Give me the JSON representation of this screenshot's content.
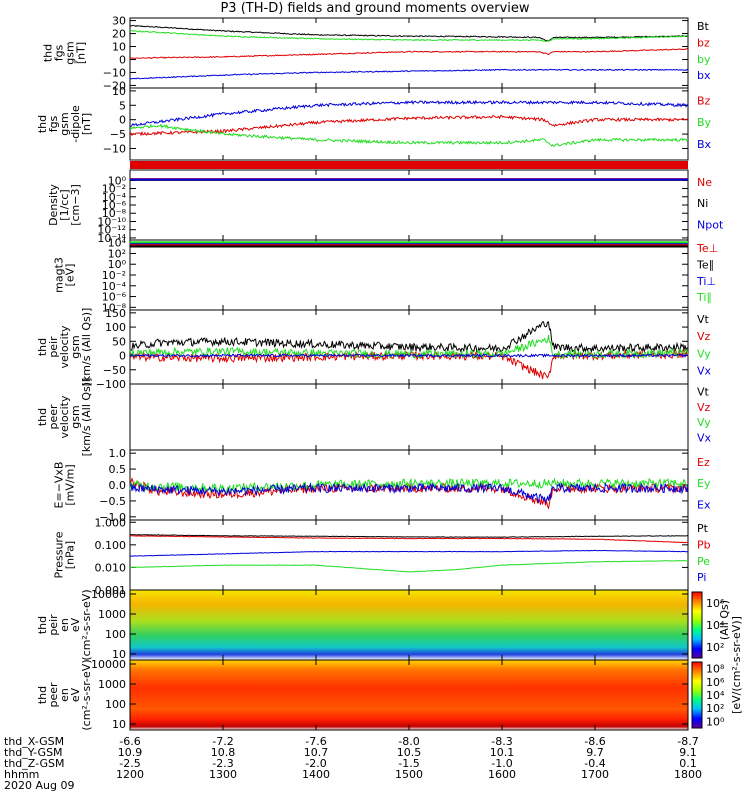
{
  "title": "P3 (TH-D) fields and ground moments overview",
  "colors": {
    "black": "#000000",
    "red": "#e00000",
    "green": "#22dd22",
    "blue": "#0000dd"
  },
  "chart_data": {
    "type": "line",
    "x_time_hhmm": [
      "1200",
      "1300",
      "1400",
      "1500",
      "1600",
      "1700",
      "1800"
    ],
    "x_date": "2020 Aug 09",
    "ephemeris": {
      "rows": [
        {
          "label": "thd_X-GSM",
          "values": [
            "-6.6",
            "-7.2",
            "-7.6",
            "-8.0",
            "-8.3",
            "-8.6",
            "-8.7"
          ]
        },
        {
          "label": "thd_Y-GSM",
          "values": [
            "10.9",
            "10.8",
            "10.7",
            "10.5",
            "10.1",
            "9.7",
            "9.1"
          ]
        },
        {
          "label": "thd_Z-GSM",
          "values": [
            "-2.5",
            "-2.3",
            "-2.0",
            "-1.5",
            "-1.0",
            "-0.4",
            "0.1"
          ]
        },
        {
          "label": "hhmm",
          "values": [
            "1200",
            "1300",
            "1400",
            "1500",
            "1600",
            "1700",
            "1800"
          ]
        }
      ],
      "date": "2020 Aug 09"
    },
    "panels": [
      {
        "id": "fgs_mag",
        "ylabel": [
          "thd",
          "fgs",
          "gsm",
          "[nT]"
        ],
        "yrange": [
          -22,
          32
        ],
        "yticks": [
          "30",
          "20",
          "10",
          "0",
          "−10",
          "−20"
        ],
        "ytick_vals": [
          30,
          20,
          10,
          0,
          -10,
          -20
        ],
        "legend": [
          {
            "name": "Bt",
            "color": "#000000"
          },
          {
            "name": "bz",
            "color": "#e00000"
          },
          {
            "name": "by",
            "color": "#22dd22"
          },
          {
            "name": "bx",
            "color": "#0000dd"
          }
        ],
        "series": [
          {
            "name": "Bt",
            "color": "#000000",
            "x": [
              1200,
              1230,
              1300,
              1400,
              1500,
              1600,
              1640,
              1650,
              1655,
              1700,
              1800
            ],
            "y": [
              26,
              25,
              22,
              19,
              18,
              17.5,
              17,
              14,
              17,
              17,
              18
            ]
          },
          {
            "name": "bz",
            "color": "#e00000",
            "x": [
              1200,
              1300,
              1400,
              1500,
              1600,
              1640,
              1650,
              1655,
              1700,
              1800
            ],
            "y": [
              1,
              2,
              4,
              6,
              6,
              6,
              4,
              6,
              6,
              8
            ]
          },
          {
            "name": "by",
            "color": "#22dd22",
            "x": [
              1200,
              1230,
              1300,
              1400,
              1500,
              1600,
              1640,
              1650,
              1655,
              1700,
              1800
            ],
            "y": [
              22,
              21,
              18,
              16,
              15,
              15,
              15,
              14,
              16,
              16,
              18
            ]
          },
          {
            "name": "bx",
            "color": "#0000dd",
            "x": [
              1200,
              1300,
              1400,
              1500,
              1600,
              1700,
              1800
            ],
            "y": [
              -15,
              -12,
              -10,
              -9,
              -8,
              -8,
              -8
            ]
          }
        ]
      },
      {
        "id": "fgs_dmag",
        "ylabel": [
          "thd",
          "fgs",
          "gsm",
          "-dipole",
          "[nT]"
        ],
        "yrange": [
          -14,
          11
        ],
        "yticks": [
          "10",
          "5",
          "0",
          "−5",
          "−10"
        ],
        "ytick_vals": [
          10,
          5,
          0,
          -5,
          -10
        ],
        "legend": [
          {
            "name": "Bz",
            "color": "#e00000"
          },
          {
            "name": "By",
            "color": "#22dd22"
          },
          {
            "name": "Bx",
            "color": "#0000dd"
          }
        ],
        "series": [
          {
            "name": "Bz",
            "color": "#e00000",
            "x": [
              1200,
              1300,
              1400,
              1500,
              1600,
              1645,
              1655,
              1700,
              1800
            ],
            "y": [
              -5,
              -4,
              -1,
              0.5,
              1,
              0,
              -2,
              0,
              0
            ]
          },
          {
            "name": "By",
            "color": "#22dd22",
            "x": [
              1200,
              1230,
              1300,
              1400,
              1500,
              1600,
              1645,
              1655,
              1700,
              1800
            ],
            "y": [
              -3,
              -2,
              -5,
              -7,
              -8,
              -8,
              -7,
              -9,
              -7,
              -7
            ]
          },
          {
            "name": "Bx",
            "color": "#0000dd",
            "x": [
              1200,
              1300,
              1400,
              1500,
              1600,
              1700,
              1800
            ],
            "y": [
              -2,
              2,
              5,
              6,
              6,
              6,
              5
            ]
          }
        ]
      },
      {
        "id": "density",
        "ylabel": [
          "Density",
          "[1/cc]",
          "[cm−3]"
        ],
        "log": true,
        "yrange": [
          -14.5,
          2.5
        ],
        "yticks": [
          "10⁰",
          "10⁻²",
          "10⁻⁴",
          "10⁻⁶",
          "10⁻⁸",
          "10⁻¹⁰",
          "10⁻¹²",
          "10⁻¹⁴"
        ],
        "ytick_vals": [
          0,
          -2,
          -4,
          -6,
          -8,
          -10,
          -12,
          -14
        ],
        "legend": [
          {
            "name": "Ne",
            "color": "#e00000"
          },
          {
            "name": "Ni",
            "color": "#000000"
          },
          {
            "name": "Npot",
            "color": "#0000dd"
          }
        ],
        "series": [
          {
            "name": "Ne",
            "color": "#e00000",
            "x": [
              1200,
              1800
            ],
            "y": [
              0.3,
              0.3
            ]
          },
          {
            "name": "Ni",
            "color": "#000000",
            "x": [
              1200,
              1800
            ],
            "y": [
              0.1,
              0.1
            ]
          },
          {
            "name": "Npot",
            "color": "#0000dd",
            "x": [
              1200,
              1800
            ],
            "y": [
              0.2,
              0.2
            ]
          }
        ]
      },
      {
        "id": "temp",
        "ylabel": [
          "magt3",
          "[eV]"
        ],
        "log": true,
        "yrange": [
          -8.5,
          4.5
        ],
        "yticks": [
          "10⁴",
          "10²",
          "10⁰",
          "10⁻²",
          "10⁻⁴",
          "10⁻⁶",
          "10⁻⁸"
        ],
        "ytick_vals": [
          4,
          2,
          0,
          -2,
          -4,
          -6,
          -8
        ],
        "legend": [
          {
            "name": "Te⊥",
            "color": "#e00000"
          },
          {
            "name": "Te∥",
            "color": "#000000"
          },
          {
            "name": "Ti⊥",
            "color": "#0000dd"
          },
          {
            "name": "Ti∥",
            "color": "#22dd22"
          }
        ],
        "series": [
          {
            "name": "Te⊥",
            "color": "#e00000",
            "x": [
              1200,
              1800
            ],
            "y": [
              3.6,
              3.6
            ]
          },
          {
            "name": "Te∥",
            "color": "#000000",
            "x": [
              1200,
              1800
            ],
            "y": [
              3.3,
              3.3
            ]
          },
          {
            "name": "Ti⊥",
            "color": "#0000dd",
            "x": [
              1200,
              1800
            ],
            "y": [
              3.9,
              3.9
            ]
          },
          {
            "name": "Ti∥",
            "color": "#22dd22",
            "x": [
              1200,
              1800
            ],
            "y": [
              4.1,
              4.1
            ]
          }
        ]
      },
      {
        "id": "peir_vel",
        "ylabel": [
          "thd",
          "peir",
          "velocity",
          "gsm",
          "[km/s (All Qs)]"
        ],
        "yrange": [
          -100,
          160
        ],
        "yticks": [
          "150",
          "100",
          "50",
          "0",
          "−50",
          "−100"
        ],
        "ytick_vals": [
          150,
          100,
          50,
          0,
          -50,
          -100
        ],
        "legend": [
          {
            "name": "Vt",
            "color": "#000000"
          },
          {
            "name": "Vz",
            "color": "#e00000"
          },
          {
            "name": "Vy",
            "color": "#22dd22"
          },
          {
            "name": "Vx",
            "color": "#0000dd"
          }
        ],
        "series": [
          {
            "name": "Vt",
            "color": "#000000",
            "x": [
              1200,
              1230,
              1300,
              1400,
              1500,
              1600,
              1650,
              1655,
              1700,
              1800
            ],
            "y": [
              30,
              45,
              50,
              40,
              30,
              25,
              120,
              30,
              25,
              30
            ]
          },
          {
            "name": "Vz",
            "color": "#e00000",
            "x": [
              1200,
              1300,
              1400,
              1500,
              1600,
              1650,
              1655,
              1700,
              1800
            ],
            "y": [
              -5,
              -10,
              -5,
              0,
              -3,
              -80,
              0,
              0,
              5
            ]
          },
          {
            "name": "Vy",
            "color": "#22dd22",
            "x": [
              1200,
              1300,
              1400,
              1500,
              1600,
              1650,
              1655,
              1700,
              1800
            ],
            "y": [
              10,
              15,
              8,
              5,
              5,
              60,
              5,
              5,
              10
            ]
          },
          {
            "name": "Vx",
            "color": "#0000dd",
            "x": [
              1200,
              1800
            ],
            "y": [
              0,
              0
            ]
          }
        ]
      },
      {
        "id": "peer_vel",
        "ylabel": [
          "thd",
          "peer",
          "velocity",
          "gsm",
          "[km/s (All Qs)]"
        ],
        "yrange": [
          -100,
          160
        ],
        "yticks": [],
        "ytick_vals": [],
        "legend": [
          {
            "name": "Vt",
            "color": "#000000"
          },
          {
            "name": "Vz",
            "color": "#e00000"
          },
          {
            "name": "Vy",
            "color": "#22dd22"
          },
          {
            "name": "Vx",
            "color": "#0000dd"
          }
        ],
        "series": []
      },
      {
        "id": "efield",
        "ylabel": [
          "E=−VxB",
          "[mV/m]"
        ],
        "yrange": [
          -1.1,
          1.1
        ],
        "yticks": [
          "1.0",
          "0.5",
          "0.0",
          "−0.5",
          "−1.0"
        ],
        "ytick_vals": [
          1,
          0.5,
          0,
          -0.5,
          -1
        ],
        "legend": [
          {
            "name": "Ez",
            "color": "#e00000"
          },
          {
            "name": "Ey",
            "color": "#22dd22"
          },
          {
            "name": "Ex",
            "color": "#0000dd"
          }
        ],
        "series": [
          {
            "name": "Ez",
            "color": "#e00000",
            "x": [
              1200,
              1230,
              1300,
              1400,
              1500,
              1600,
              1650,
              1655,
              1700,
              1800
            ],
            "y": [
              0.1,
              -0.2,
              -0.3,
              -0.1,
              -0.1,
              -0.1,
              -0.6,
              -0.1,
              -0.1,
              -0.1
            ]
          },
          {
            "name": "Ey",
            "color": "#22dd22",
            "x": [
              1200,
              1300,
              1400,
              1500,
              1600,
              1700,
              1800
            ],
            "y": [
              0,
              -0.1,
              0,
              0.05,
              0.05,
              0.05,
              0.05
            ]
          },
          {
            "name": "Ex",
            "color": "#0000dd",
            "x": [
              1200,
              1300,
              1400,
              1500,
              1600,
              1650,
              1655,
              1700,
              1800
            ],
            "y": [
              -0.1,
              -0.2,
              -0.1,
              -0.1,
              -0.1,
              -0.5,
              -0.1,
              -0.1,
              -0.1
            ]
          }
        ]
      },
      {
        "id": "pressure",
        "ylabel": [
          "Pressure",
          "[nPa]"
        ],
        "log": true,
        "yrange": [
          -3,
          0.1
        ],
        "yticks": [
          "1.000",
          "0.100",
          "0.010",
          "0.001"
        ],
        "ytick_vals": [
          0,
          -1,
          -2,
          -3
        ],
        "legend": [
          {
            "name": "Pt",
            "color": "#000000"
          },
          {
            "name": "Pb",
            "color": "#e00000"
          },
          {
            "name": "Pe",
            "color": "#22dd22"
          },
          {
            "name": "Pi",
            "color": "#0000dd"
          }
        ],
        "series": [
          {
            "name": "Pt",
            "color": "#000000",
            "x": [
              1200,
              1300,
              1400,
              1500,
              1600,
              1700,
              1800
            ],
            "y": [
              -0.55,
              -0.6,
              -0.62,
              -0.65,
              -0.66,
              -0.62,
              -0.6
            ]
          },
          {
            "name": "Pb",
            "color": "#e00000",
            "x": [
              1200,
              1300,
              1400,
              1500,
              1600,
              1700,
              1800
            ],
            "y": [
              -0.6,
              -0.65,
              -0.7,
              -0.72,
              -0.72,
              -0.75,
              -0.9
            ]
          },
          {
            "name": "Pe",
            "color": "#22dd22",
            "x": [
              1200,
              1300,
              1400,
              1500,
              1550,
              1600,
              1700,
              1800
            ],
            "y": [
              -2.0,
              -1.9,
              -1.9,
              -2.2,
              -2.1,
              -1.9,
              -1.75,
              -1.7
            ]
          },
          {
            "name": "Pi",
            "color": "#0000dd",
            "x": [
              1200,
              1300,
              1400,
              1500,
              1600,
              1700,
              1800
            ],
            "y": [
              -1.5,
              -1.4,
              -1.3,
              -1.3,
              -1.3,
              -1.25,
              -1.3
            ]
          }
        ]
      },
      {
        "id": "peir_spec",
        "type": "heatmap",
        "ylabel": [
          "thd",
          "peir",
          "en",
          "eV",
          "(cm²-s-sr-eV)"
        ],
        "log": true,
        "yrange": [
          0.7,
          4.2
        ],
        "yticks": [
          "10000",
          "1000",
          "100",
          "10"
        ],
        "ytick_vals": [
          4,
          3,
          2,
          1
        ]
      },
      {
        "id": "peer_spec",
        "type": "heatmap",
        "ylabel": [
          "thd",
          "peer",
          "en",
          "eV",
          "(cm²-s-sr-eV)"
        ],
        "log": true,
        "yrange": [
          0.7,
          4.2
        ],
        "yticks": [
          "10000",
          "1000",
          "100",
          "10"
        ],
        "ytick_vals": [
          4,
          3,
          2,
          1
        ]
      }
    ],
    "colorbar_peir": {
      "ticks": [
        "10⁶",
        "10⁴",
        "10²"
      ],
      "label": "[eV/(cm²-s-sr-eV)]",
      "side_label": "(All Qs)"
    },
    "colorbar_peer": {
      "ticks": [
        "10⁸",
        "10⁶",
        "10⁴",
        "10²",
        "10⁰"
      ],
      "label": "[eV/(cm²-s-sr-eV)]",
      "side_label": "(All Qs)"
    }
  }
}
